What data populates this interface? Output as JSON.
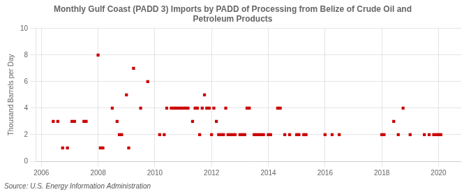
{
  "chart_data": {
    "type": "scatter",
    "title": "Monthly Gulf Coast (PADD 3) Imports by PADD of Processing from Belize of Crude Oil and\nPetroleum Products",
    "ylabel": "Thousand Barrels per Day",
    "annotations": [
      "Source: U.S. Energy Information Administration"
    ],
    "color": "#cc0000",
    "marker": "square",
    "grid": true,
    "xlim": [
      2005.8,
      2020.8
    ],
    "xticks": [
      2006,
      2008,
      2010,
      2012,
      2014,
      2016,
      2018,
      2020
    ],
    "ylim": [
      0,
      10
    ],
    "yticks": [
      0,
      2,
      4,
      6,
      8,
      10
    ],
    "x": [
      2006.42,
      2006.58,
      2006.75,
      2006.92,
      2007.08,
      2007.17,
      2007.5,
      2007.58,
      2008.0,
      2008.08,
      2008.17,
      2008.5,
      2008.67,
      2008.75,
      2008.83,
      2009.0,
      2009.08,
      2009.25,
      2009.5,
      2009.75,
      2010.17,
      2010.33,
      2010.42,
      2010.58,
      2010.67,
      2010.75,
      2010.83,
      2010.92,
      2011.0,
      2011.08,
      2011.17,
      2011.33,
      2011.42,
      2011.5,
      2011.58,
      2011.67,
      2011.75,
      2011.83,
      2011.92,
      2012.0,
      2012.08,
      2012.17,
      2012.25,
      2012.33,
      2012.42,
      2012.5,
      2012.58,
      2012.67,
      2012.75,
      2012.83,
      2013.0,
      2013.08,
      2013.17,
      2013.25,
      2013.33,
      2013.5,
      2013.58,
      2013.67,
      2013.75,
      2013.83,
      2014.0,
      2014.08,
      2014.33,
      2014.42,
      2014.58,
      2014.75,
      2015.0,
      2015.08,
      2015.25,
      2015.33,
      2016.0,
      2016.25,
      2016.5,
      2018.0,
      2018.08,
      2018.42,
      2018.58,
      2018.75,
      2019.0,
      2019.5,
      2019.67,
      2019.83,
      2019.92,
      2020.0,
      2020.08
    ],
    "values": [
      3,
      3,
      1,
      1,
      3,
      3,
      3,
      3,
      8,
      1,
      1,
      4,
      3,
      2,
      2,
      5,
      1,
      7,
      4,
      6,
      2,
      2,
      4,
      4,
      4,
      4,
      4,
      4,
      4,
      4,
      4,
      3,
      4,
      4,
      2,
      4,
      5,
      4,
      4,
      2,
      4,
      3,
      2,
      2,
      2,
      4,
      2,
      2,
      2,
      2,
      2,
      2,
      2,
      4,
      4,
      2,
      2,
      2,
      2,
      2,
      2,
      2,
      4,
      4,
      2,
      2,
      2,
      2,
      2,
      2,
      2,
      2,
      2,
      2,
      2,
      3,
      2,
      4,
      2,
      2,
      2,
      2,
      2,
      2,
      2
    ]
  }
}
